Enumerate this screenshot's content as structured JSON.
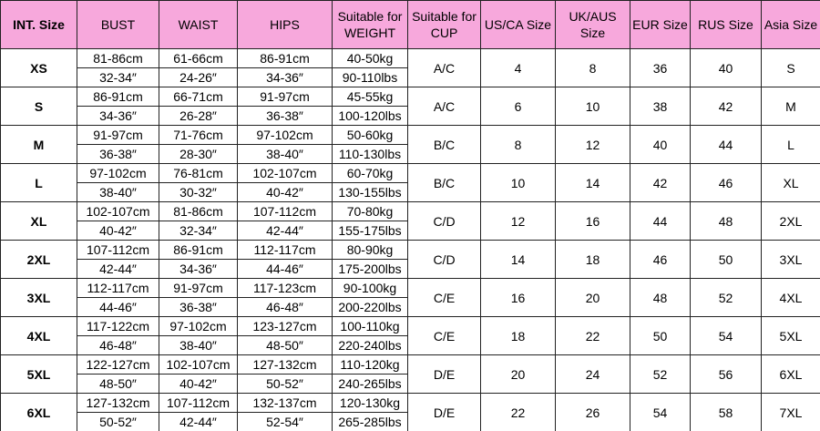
{
  "table": {
    "header": [
      "INT. Size",
      "BUST",
      "WAIST",
      "HIPS",
      "Suitable for WEIGHT",
      "Suitable for CUP",
      "US/CA Size",
      "UK/AUS Size",
      "EUR Size",
      "RUS Size",
      "Asia Size"
    ],
    "rows": [
      [
        "XS",
        [
          "81-86cm",
          "32-34″"
        ],
        [
          "61-66cm",
          "24-26″"
        ],
        [
          "86-91cm",
          "34-36″"
        ],
        [
          "40-50kg",
          "90-110lbs"
        ],
        "A/C",
        4,
        8,
        36,
        40,
        "S"
      ],
      [
        "S",
        [
          "86-91cm",
          "34-36″"
        ],
        [
          "66-71cm",
          "26-28″"
        ],
        [
          "91-97cm",
          "36-38″"
        ],
        [
          "45-55kg",
          "100-120lbs"
        ],
        "A/C",
        6,
        10,
        38,
        42,
        "M"
      ],
      [
        "M",
        [
          "91-97cm",
          "36-38″"
        ],
        [
          "71-76cm",
          "28-30″"
        ],
        [
          "97-102cm",
          "38-40″"
        ],
        [
          "50-60kg",
          "110-130lbs"
        ],
        "B/C",
        8,
        12,
        40,
        44,
        "L"
      ],
      [
        "L",
        [
          "97-102cm",
          "38-40″"
        ],
        [
          "76-81cm",
          "30-32″"
        ],
        [
          "102-107cm",
          "40-42″"
        ],
        [
          "60-70kg",
          "130-155lbs"
        ],
        "B/C",
        10,
        14,
        42,
        46,
        "XL"
      ],
      [
        "XL",
        [
          "102-107cm",
          "40-42″"
        ],
        [
          "81-86cm",
          "32-34″"
        ],
        [
          "107-112cm",
          "42-44″"
        ],
        [
          "70-80kg",
          "155-175lbs"
        ],
        "C/D",
        12,
        16,
        44,
        48,
        "2XL"
      ],
      [
        "2XL",
        [
          "107-112cm",
          "42-44″"
        ],
        [
          "86-91cm",
          "34-36″"
        ],
        [
          "112-117cm",
          "44-46″"
        ],
        [
          "80-90kg",
          "175-200lbs"
        ],
        "C/D",
        14,
        18,
        46,
        50,
        "3XL"
      ],
      [
        "3XL",
        [
          "112-117cm",
          "44-46″"
        ],
        [
          "91-97cm",
          "36-38″"
        ],
        [
          "117-123cm",
          "46-48″"
        ],
        [
          "90-100kg",
          "200-220lbs"
        ],
        "C/E",
        16,
        20,
        48,
        52,
        "4XL"
      ],
      [
        "4XL",
        [
          "117-122cm",
          "46-48″"
        ],
        [
          "97-102cm",
          "38-40″"
        ],
        [
          "123-127cm",
          "48-50″"
        ],
        [
          "100-110kg",
          "220-240lbs"
        ],
        "C/E",
        18,
        22,
        50,
        54,
        "5XL"
      ],
      [
        "5XL",
        [
          "122-127cm",
          "48-50″"
        ],
        [
          "102-107cm",
          "40-42″"
        ],
        [
          "127-132cm",
          "50-52″"
        ],
        [
          "110-120kg",
          "240-265lbs"
        ],
        "D/E",
        20,
        24,
        52,
        56,
        "6XL"
      ],
      [
        "6XL",
        [
          "127-132cm",
          "50-52″"
        ],
        [
          "107-112cm",
          "42-44″"
        ],
        [
          "132-137cm",
          "52-54″"
        ],
        [
          "120-130kg",
          "265-285lbs"
        ],
        "D/E",
        22,
        26,
        54,
        58,
        "7XL"
      ]
    ]
  }
}
